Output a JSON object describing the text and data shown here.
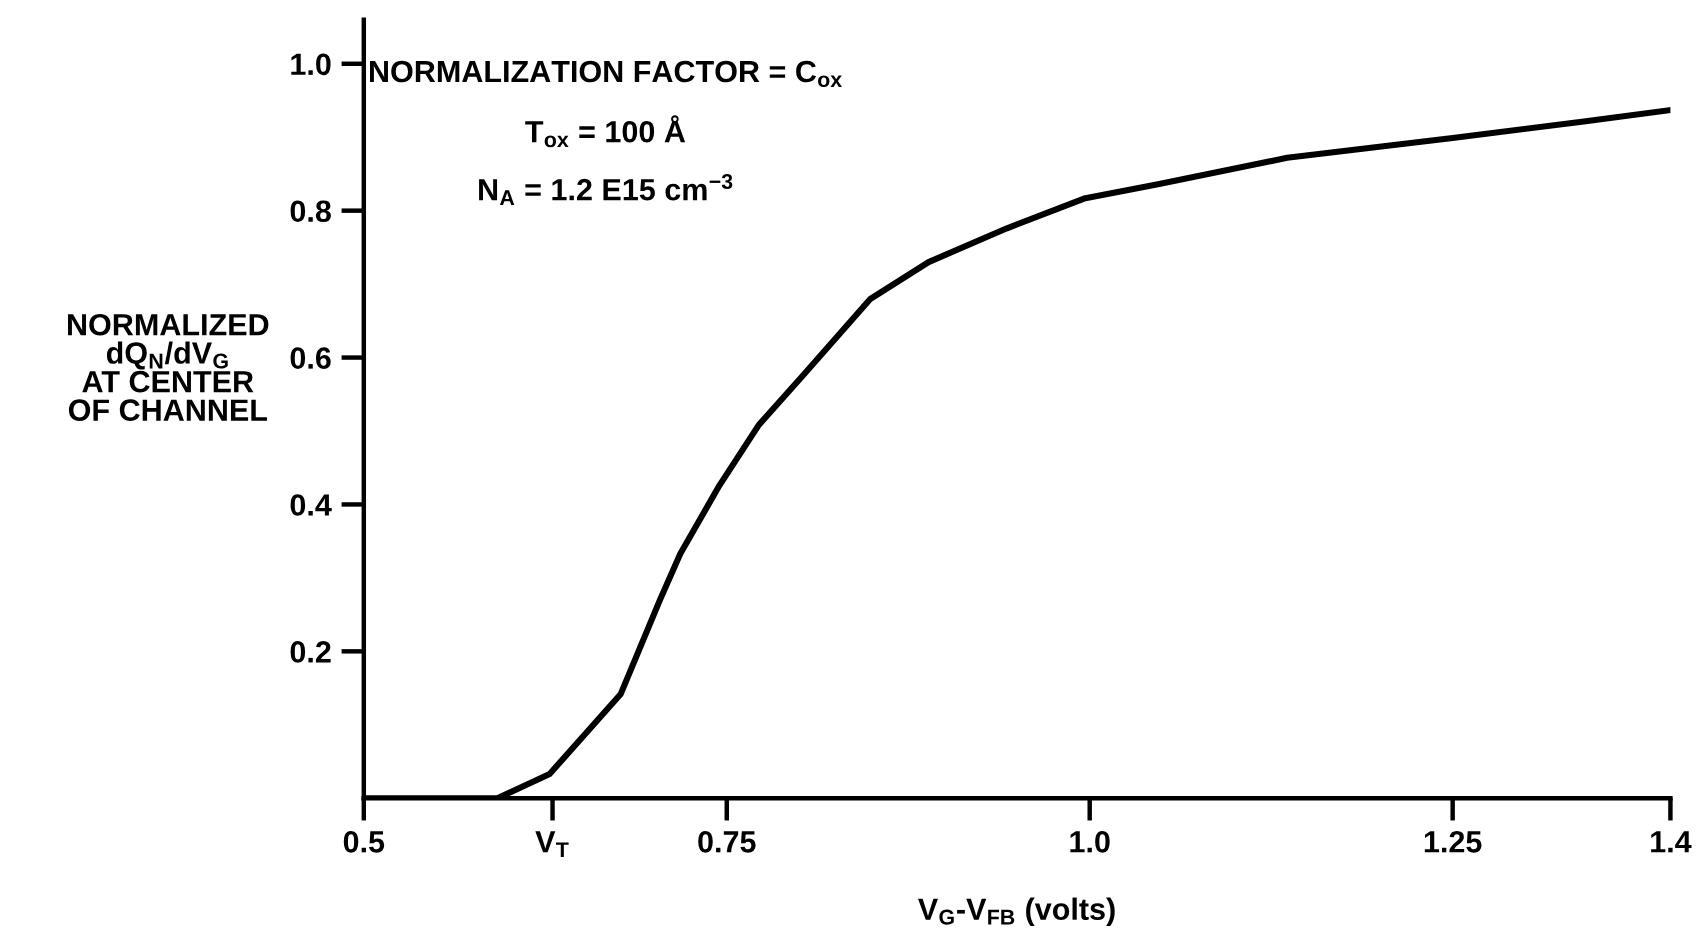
{
  "chart_data": {
    "type": "line",
    "xlabel": "V$_{G}$-V$_{FB}$ (volts)",
    "ylabel": "NORMALIZED\ndQ$_{N}$/dV$_{G}$\nAT CENTER\nOF CHANNEL",
    "annotations": [
      "NORMALIZATION FACTOR = C$_{ox}$",
      "T$_{ox}$ = 100 Å",
      "N$_{A}$ = 1.2 E15 cm$^{−3}$"
    ],
    "series": [
      {
        "color": "#000000",
        "x": [
          0.5,
          0.592,
          0.628,
          0.677,
          0.704,
          0.718,
          0.745,
          0.772,
          0.804,
          0.849,
          0.889,
          0.943,
          0.997,
          1.047,
          1.136,
          1.25,
          1.339,
          1.4
        ],
        "values": [
          0,
          0,
          0.033,
          0.142,
          0.27,
          0.333,
          0.426,
          0.508,
          0.579,
          0.68,
          0.73,
          0.776,
          0.817,
          0.836,
          0.872,
          0.899,
          0.921,
          0.937
        ]
      }
    ],
    "xlim": [
      0.5,
      1.4
    ],
    "ylim": [
      0,
      1.06
    ],
    "xticks": [
      0.5,
      {
        "value": 0.63,
        "label": "V$_{T}$"
      },
      0.75,
      {
        "value": 1,
        "label": "1.0"
      },
      1.25,
      1.4
    ],
    "yticks": [
      0.2,
      0.4,
      0.6,
      0.8,
      {
        "value": 1,
        "label": "1.0"
      }
    ],
    "grid": false,
    "legend": false,
    "marker": "none",
    "line_style": "solid"
  }
}
